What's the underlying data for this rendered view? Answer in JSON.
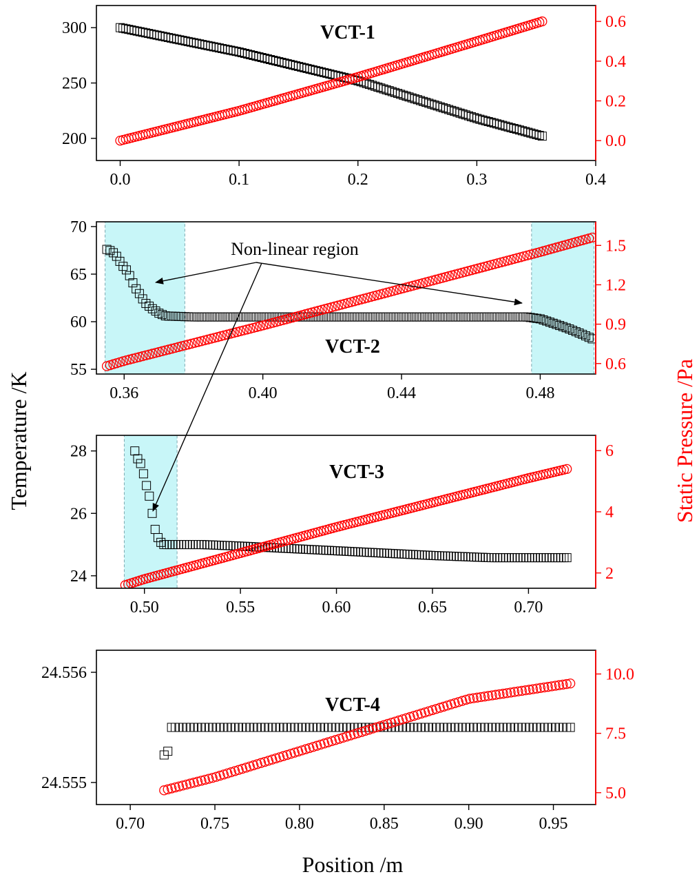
{
  "figure": {
    "ylabel_left": "Temperature /K",
    "ylabel_right": "Static Pressure /Pa",
    "xlabel": "Position /m",
    "annotation": "Non-linear region",
    "colors": {
      "temperature": "#000000",
      "pressure": "#ff0000",
      "region": "#c8f6f8",
      "region_border": "#7aa8b0"
    }
  },
  "chart_data": [
    {
      "type": "scatter",
      "title": "VCT-1",
      "xlim": [
        -0.02,
        0.4
      ],
      "x_ticks": [
        "0.0",
        "0.1",
        "0.2",
        "0.3",
        "0.4"
      ],
      "x_tick_values": [
        0,
        0.1,
        0.2,
        0.3,
        0.4
      ],
      "ylim_left": [
        180,
        320
      ],
      "y_ticks_left": [
        "200",
        "250",
        "300"
      ],
      "y_tick_values_left": [
        200,
        250,
        300
      ],
      "ylim_right": [
        -0.1,
        0.68
      ],
      "y_ticks_right": [
        "0.0",
        "0.2",
        "0.4",
        "0.6"
      ],
      "y_tick_values_right": [
        0,
        0.2,
        0.4,
        0.6
      ],
      "regions": [],
      "series": [
        {
          "marker": "square",
          "axis": "left",
          "x_range": [
            0.0,
            0.355
          ],
          "y_points": [
            [
              0.0,
              300
            ],
            [
              0.1,
              278
            ],
            [
              0.2,
              252
            ],
            [
              0.3,
              218
            ],
            [
              0.355,
              202
            ]
          ]
        },
        {
          "marker": "circle",
          "axis": "right",
          "x_range": [
            0.0,
            0.355
          ],
          "y_points": [
            [
              0.0,
              0.0
            ],
            [
              0.1,
              0.15
            ],
            [
              0.2,
              0.32
            ],
            [
              0.3,
              0.5
            ],
            [
              0.355,
              0.6
            ]
          ]
        }
      ]
    },
    {
      "type": "scatter",
      "title": "VCT-2",
      "xlim": [
        0.352,
        0.496
      ],
      "x_ticks": [
        "0.36",
        "0.40",
        "0.44",
        "0.48"
      ],
      "x_tick_values": [
        0.36,
        0.4,
        0.44,
        0.48
      ],
      "ylim_left": [
        54.5,
        70.5
      ],
      "y_ticks_left": [
        "55",
        "60",
        "65",
        "70"
      ],
      "y_tick_values_left": [
        55,
        60,
        65,
        70
      ],
      "ylim_right": [
        0.52,
        1.68
      ],
      "y_ticks_right": [
        "0.6",
        "0.9",
        "1.2",
        "1.5"
      ],
      "y_tick_values_right": [
        0.6,
        0.9,
        1.2,
        1.5
      ],
      "regions": [
        [
          0.3545,
          0.3775
        ],
        [
          0.4775,
          0.4955
        ]
      ],
      "series": [
        {
          "marker": "square",
          "axis": "left",
          "x_range": [
            0.355,
            0.495
          ],
          "y_points": [
            [
              0.355,
              67.6
            ],
            [
              0.3565,
              67.4
            ],
            [
              0.358,
              66.8
            ],
            [
              0.3595,
              65.9
            ],
            [
              0.361,
              65.3
            ],
            [
              0.363,
              63.7
            ],
            [
              0.3645,
              62.9
            ],
            [
              0.366,
              62.0
            ],
            [
              0.368,
              61.4
            ],
            [
              0.37,
              60.9
            ],
            [
              0.372,
              60.6
            ],
            [
              0.38,
              60.5
            ],
            [
              0.44,
              60.5
            ],
            [
              0.476,
              60.5
            ],
            [
              0.48,
              60.3
            ],
            [
              0.484,
              59.8
            ],
            [
              0.488,
              59.3
            ],
            [
              0.492,
              58.7
            ],
            [
              0.495,
              58.2
            ]
          ]
        },
        {
          "marker": "circle",
          "axis": "right",
          "x_range": [
            0.355,
            0.495
          ],
          "y_points": [
            [
              0.355,
              0.58
            ],
            [
              0.36,
              0.62
            ],
            [
              0.4,
              0.89
            ],
            [
              0.44,
              1.17
            ],
            [
              0.48,
              1.45
            ],
            [
              0.495,
              1.56
            ]
          ]
        }
      ]
    },
    {
      "type": "scatter",
      "title": "VCT-3",
      "xlim": [
        0.475,
        0.735
      ],
      "x_ticks": [
        "0.50",
        "0.55",
        "0.60",
        "0.65",
        "0.70"
      ],
      "x_tick_values": [
        0.5,
        0.55,
        0.6,
        0.65,
        0.7
      ],
      "ylim_left": [
        23.6,
        28.5
      ],
      "y_ticks_left": [
        "24",
        "26",
        "28"
      ],
      "y_tick_values_left": [
        24,
        26,
        28
      ],
      "ylim_right": [
        1.5,
        6.5
      ],
      "y_ticks_right": [
        "2",
        "4",
        "6"
      ],
      "y_tick_values_right": [
        2,
        4,
        6
      ],
      "regions": [
        [
          0.4895,
          0.517
        ]
      ],
      "series": [
        {
          "marker": "square",
          "axis": "left",
          "x_range": [
            0.495,
            0.72
          ],
          "y_points": [
            [
              0.495,
              28.0
            ],
            [
              0.496,
              27.8
            ],
            [
              0.497,
              27.7
            ],
            [
              0.498,
              27.6
            ],
            [
              0.499,
              27.4
            ],
            [
              0.501,
              26.9
            ],
            [
              0.503,
              26.45
            ],
            [
              0.505,
              25.6
            ],
            [
              0.5065,
              25.3
            ],
            [
              0.508,
              25.1
            ],
            [
              0.51,
              25.0
            ],
            [
              0.53,
              25.0
            ],
            [
              0.55,
              24.95
            ],
            [
              0.6,
              24.8
            ],
            [
              0.65,
              24.65
            ],
            [
              0.68,
              24.58
            ],
            [
              0.72,
              24.58
            ]
          ]
        },
        {
          "marker": "circle",
          "axis": "right",
          "x_range": [
            0.49,
            0.72
          ],
          "y_points": [
            [
              0.49,
              1.6
            ],
            [
              0.5,
              1.8
            ],
            [
              0.55,
              2.65
            ],
            [
              0.6,
              3.5
            ],
            [
              0.65,
              4.3
            ],
            [
              0.7,
              5.1
            ],
            [
              0.72,
              5.4
            ]
          ]
        }
      ]
    },
    {
      "type": "scatter",
      "title": "VCT-4",
      "xlim": [
        0.68,
        0.975
      ],
      "x_ticks": [
        "0.70",
        "0.75",
        "0.80",
        "0.85",
        "0.90",
        "0.95"
      ],
      "x_tick_values": [
        0.7,
        0.75,
        0.8,
        0.85,
        0.9,
        0.95
      ],
      "ylim_left": [
        24.5548,
        24.5562
      ],
      "y_ticks_left": [
        "24.555",
        "24.556"
      ],
      "y_tick_values_left": [
        24.555,
        24.556
      ],
      "ylim_right": [
        4.5,
        11.0
      ],
      "y_ticks_right": [
        "5.0",
        "7.5",
        "10.0"
      ],
      "y_tick_values_right": [
        5.0,
        7.5,
        10.0
      ],
      "regions": [],
      "series": [
        {
          "marker": "square",
          "axis": "left",
          "x_range": [
            0.72,
            0.96
          ],
          "y_points": [
            [
              0.718,
              24.55525
            ],
            [
              0.722,
              24.55525
            ],
            [
              0.7235,
              24.5555
            ],
            [
              0.8,
              24.5555
            ],
            [
              0.9,
              24.5555
            ],
            [
              0.96,
              24.5555
            ]
          ]
        },
        {
          "marker": "circle",
          "axis": "right",
          "x_range": [
            0.72,
            0.96
          ],
          "y_points": [
            [
              0.72,
              5.1
            ],
            [
              0.75,
              5.65
            ],
            [
              0.8,
              6.75
            ],
            [
              0.85,
              7.85
            ],
            [
              0.9,
              8.95
            ],
            [
              0.96,
              9.6
            ]
          ]
        }
      ]
    }
  ]
}
